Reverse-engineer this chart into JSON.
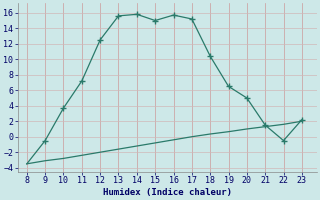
{
  "upper_x": [
    8,
    9,
    10,
    11,
    12,
    13,
    14,
    15,
    16,
    17,
    18,
    19,
    20,
    21,
    22,
    23
  ],
  "upper_y": [
    -3.5,
    -0.5,
    3.7,
    7.2,
    12.5,
    15.6,
    15.8,
    15.0,
    15.7,
    15.2,
    10.4,
    6.5,
    5.0,
    1.5,
    -0.5,
    2.2
  ],
  "lower_x": [
    8,
    9,
    10,
    11,
    12,
    13,
    14,
    15,
    16,
    17,
    18,
    19,
    20,
    21,
    22,
    23
  ],
  "lower_y": [
    -3.5,
    -3.1,
    -2.8,
    -2.4,
    -2.0,
    -1.6,
    -1.2,
    -0.8,
    -0.4,
    0.0,
    0.35,
    0.65,
    1.0,
    1.3,
    1.6,
    2.0
  ],
  "upper_marker_x": [
    9,
    10,
    11,
    12,
    13,
    14,
    15,
    16,
    17,
    18,
    19,
    20,
    21,
    22,
    23
  ],
  "upper_marker_y": [
    -0.5,
    3.7,
    7.2,
    12.5,
    15.6,
    15.8,
    15.0,
    15.7,
    15.2,
    10.4,
    6.5,
    5.0,
    1.5,
    -0.5,
    2.2
  ],
  "line_color": "#2a7a6a",
  "bg_color": "#cde8e8",
  "grid_color": "#b8d8d8",
  "xlabel": "Humidex (Indice chaleur)",
  "xlim": [
    7.5,
    23.8
  ],
  "ylim": [
    -4.5,
    17.2
  ],
  "xticks": [
    8,
    9,
    10,
    11,
    12,
    13,
    14,
    15,
    16,
    17,
    18,
    19,
    20,
    21,
    22,
    23
  ],
  "yticks": [
    -4,
    -2,
    0,
    2,
    4,
    6,
    8,
    10,
    12,
    14,
    16
  ],
  "marker": "+"
}
